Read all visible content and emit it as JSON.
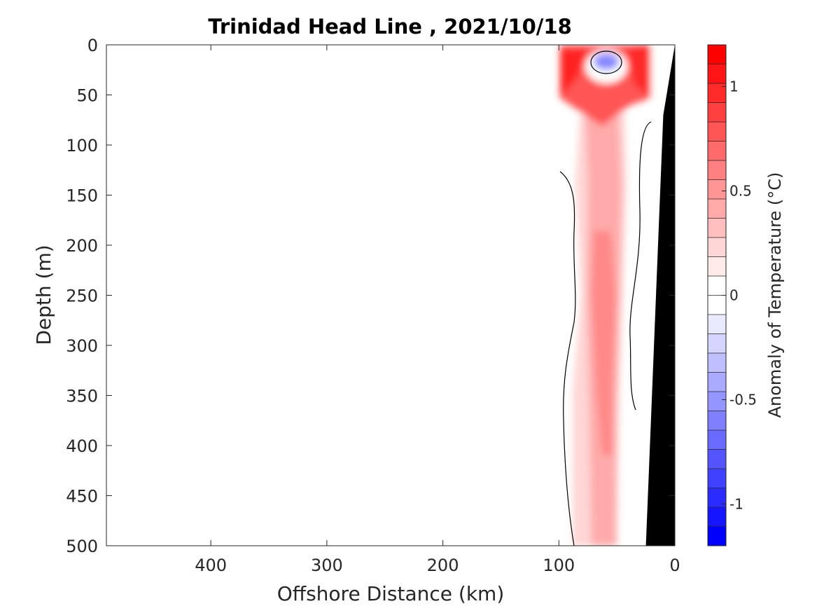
{
  "chart_data": {
    "type": "heatmap",
    "title": "Trinidad Head Line , 2021/10/18",
    "xlabel": "Offshore Distance (km)",
    "ylabel": "Depth (m)",
    "colorbar_label": "Anomaly of Temperature (°C)",
    "xlim": [
      490,
      0
    ],
    "ylim": [
      0,
      500
    ],
    "x_reversed": true,
    "y_reversed": true,
    "x_ticks": [
      400,
      300,
      200,
      100,
      0
    ],
    "y_ticks": [
      0,
      50,
      100,
      150,
      200,
      250,
      300,
      350,
      400,
      450,
      500
    ],
    "colorbar": {
      "range": [
        -1.2,
        1.2
      ],
      "step": 0.1,
      "ticks": [
        -1,
        -0.5,
        0,
        0.5,
        1
      ],
      "tick_labels": [
        "-1",
        "-0.5",
        "0",
        "0.5",
        "1"
      ],
      "colors": [
        "#0000ff",
        "#1515ff",
        "#2b2bff",
        "#4040ff",
        "#5555ff",
        "#6a6aff",
        "#8080ff",
        "#9595ff",
        "#aaaaff",
        "#bfbfff",
        "#d5d5ff",
        "#eaeaff",
        "#ffffff",
        "#ffffff",
        "#ffeaea",
        "#ffd5d5",
        "#ffbfbf",
        "#ffaaaa",
        "#ff9595",
        "#ff8080",
        "#ff6a6a",
        "#ff5555",
        "#ff4040",
        "#ff2b2b",
        "#ff1515",
        "#ff0000"
      ]
    },
    "section": {
      "x_extent_km": [
        100,
        20
      ],
      "depth_extent_m": [
        0,
        500
      ],
      "features": [
        {
          "name": "warm surface layer",
          "x_range_km": [
            100,
            20
          ],
          "depth_range_m": [
            0,
            80
          ],
          "anomaly_c": 1.1
        },
        {
          "name": "cold surface eddy",
          "x_km": 60,
          "depth_m": 15,
          "anomaly_c": -0.3
        },
        {
          "name": "warm subsurface core",
          "x_range_km": [
            90,
            50
          ],
          "depth_range_m": [
            80,
            500
          ],
          "anomaly_c": 0.45
        },
        {
          "name": "near-zero nearshore band",
          "x_range_km": [
            50,
            30
          ],
          "depth_range_m": [
            100,
            370
          ],
          "anomaly_c": 0.0
        }
      ]
    },
    "bathymetry": [
      {
        "x": 0,
        "depth": 0
      },
      {
        "x": 10,
        "depth": 70
      },
      {
        "x": 25,
        "depth": 500
      }
    ],
    "grid": false
  }
}
